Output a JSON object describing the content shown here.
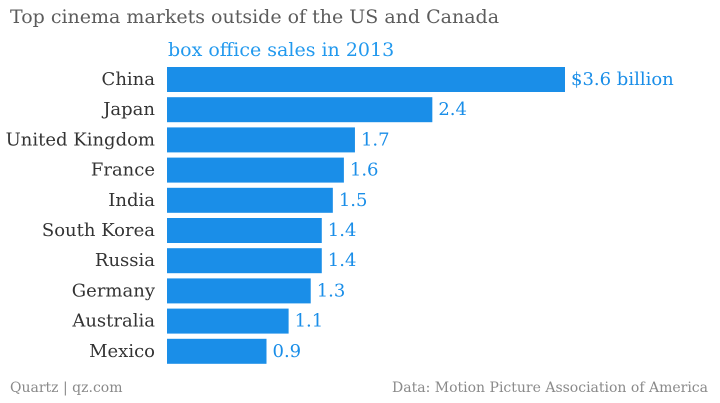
{
  "chart_data": {
    "type": "bar",
    "orientation": "horizontal",
    "title": "Top cinema markets outside of the US and Canada",
    "subtitle": "box office sales in 2013",
    "categories": [
      "China",
      "Japan",
      "United Kingdom",
      "France",
      "India",
      "South Korea",
      "Russia",
      "Germany",
      "Australia",
      "Mexico"
    ],
    "values": [
      3.6,
      2.4,
      1.7,
      1.6,
      1.5,
      1.4,
      1.4,
      1.3,
      1.1,
      0.9
    ],
    "value_labels": [
      "$3.6 billion",
      "2.4",
      "1.7",
      "1.6",
      "1.5",
      "1.4",
      "1.4",
      "1.3",
      "1.1",
      "0.9"
    ],
    "unit": "billion USD",
    "xlim": [
      0,
      3.6
    ],
    "grid": false,
    "legend": "none",
    "colors": {
      "bar": "#1a8ee8",
      "value_label": "#1a8ee8",
      "category_label": "#333333",
      "title": "#5c5c5c",
      "subtitle": "#2299ee",
      "footer": "#8a8a8a"
    }
  },
  "footer": {
    "credit": "Quartz | qz.com",
    "source": "Data: Motion Picture Association of America"
  }
}
